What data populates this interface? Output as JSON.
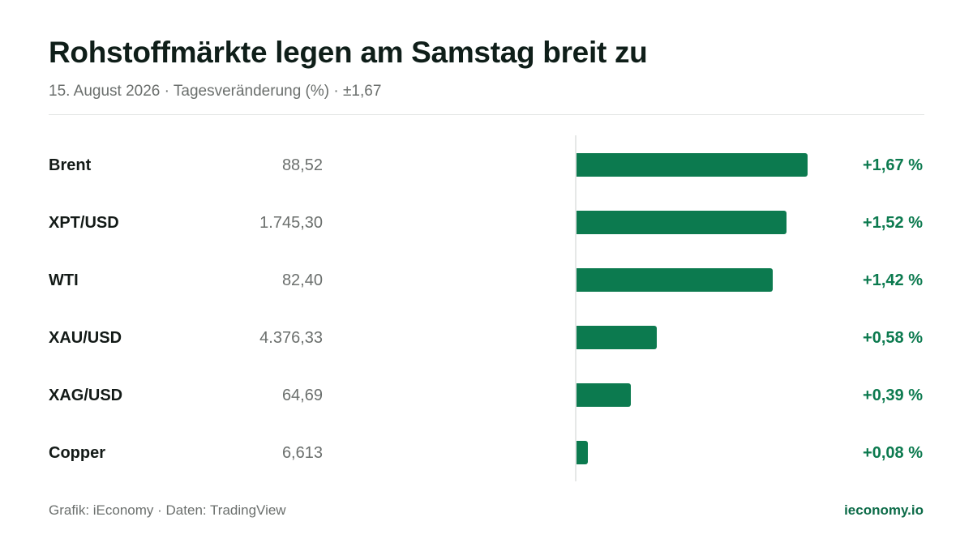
{
  "header": {
    "title": "Rohstoffmärkte legen am Samstag breit zu",
    "subtitle": "15. August 2026 · Tagesveränderung (%) · ±1,67"
  },
  "footer": {
    "source": "Grafik: iEconomy · Daten: TradingView",
    "brand": "ieconomy.io"
  },
  "colors": {
    "positive": "#0c7a4f",
    "brand": "#0c6b48"
  },
  "chart_data": {
    "type": "bar",
    "orientation": "horizontal",
    "title": "Rohstoffmärkte legen am Samstag breit zu",
    "subtitle": "15. August 2026 · Tagesveränderung (%) · ±1,67",
    "xlim": [
      0,
      1.67
    ],
    "grid": false,
    "categories": [
      "Brent",
      "XPT/USD",
      "WTI",
      "XAU/USD",
      "XAG/USD",
      "Copper"
    ],
    "prices": [
      "88,52",
      "1.745,30",
      "82,40",
      "4.376,33",
      "64,69",
      "6,613"
    ],
    "values": [
      1.67,
      1.52,
      1.42,
      0.58,
      0.39,
      0.08
    ],
    "value_labels": [
      "+1,67 %",
      "+1,52 %",
      "+1,42 %",
      "+0,58 %",
      "+0,39 %",
      "+0,08 %"
    ]
  }
}
